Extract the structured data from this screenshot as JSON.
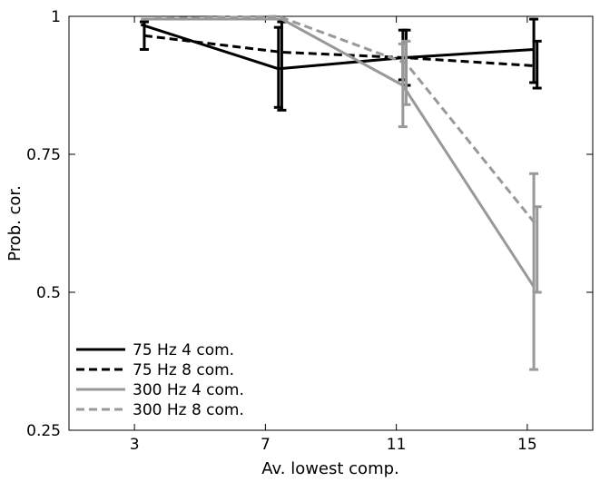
{
  "chart_data": {
    "type": "line",
    "title": "",
    "xlabel": "Av. lowest comp.",
    "ylabel": "Prob. cor.",
    "xlim": [
      1,
      17
    ],
    "ylim": [
      0.25,
      1
    ],
    "xticks": [
      3,
      7,
      11,
      15
    ],
    "xtick_labels": [
      "3",
      "7",
      "11",
      "15"
    ],
    "yticks": [
      0.25,
      0.5,
      0.75,
      1
    ],
    "ytick_labels": [
      "0.25",
      "0.5",
      "0.75",
      "1"
    ],
    "grid": false,
    "legend_position": "bottom-left",
    "series": [
      {
        "name": "75 Hz 4 com.",
        "color": "#000000",
        "dash": "solid",
        "x": [
          3.2,
          7.4,
          11.2,
          15.2
        ],
        "y": [
          0.985,
          0.905,
          0.925,
          0.94
        ],
        "err_low": [
          0.985,
          0.835,
          0.885,
          0.88
        ],
        "err_high": [
          0.985,
          0.98,
          0.975,
          0.995
        ]
      },
      {
        "name": "75 Hz 8 com.",
        "color": "#000000",
        "dash": "dashed",
        "x": [
          3.3,
          7.5,
          11.3,
          15.3
        ],
        "y": [
          0.965,
          0.935,
          0.925,
          0.91
        ],
        "err_low": [
          0.94,
          0.83,
          0.875,
          0.87
        ],
        "err_high": [
          0.99,
          0.99,
          0.975,
          0.955
        ]
      },
      {
        "name": "300 Hz 4 com.",
        "color": "#999999",
        "dash": "solid",
        "x": [
          3.3,
          7.5,
          11.2,
          15.2
        ],
        "y": [
          0.995,
          0.995,
          0.875,
          0.51
        ],
        "err_low": [
          0.995,
          0.995,
          0.8,
          0.36
        ],
        "err_high": [
          0.995,
          0.995,
          0.95,
          0.715
        ]
      },
      {
        "name": "300 Hz 8 com.",
        "color": "#999999",
        "dash": "dashed",
        "x": [
          3.2,
          7.4,
          11.3,
          15.3
        ],
        "y": [
          0.995,
          1.0,
          0.915,
          0.62
        ],
        "err_low": [
          0.995,
          1.0,
          0.84,
          0.5
        ],
        "err_high": [
          0.995,
          1.0,
          0.955,
          0.655
        ]
      }
    ]
  }
}
